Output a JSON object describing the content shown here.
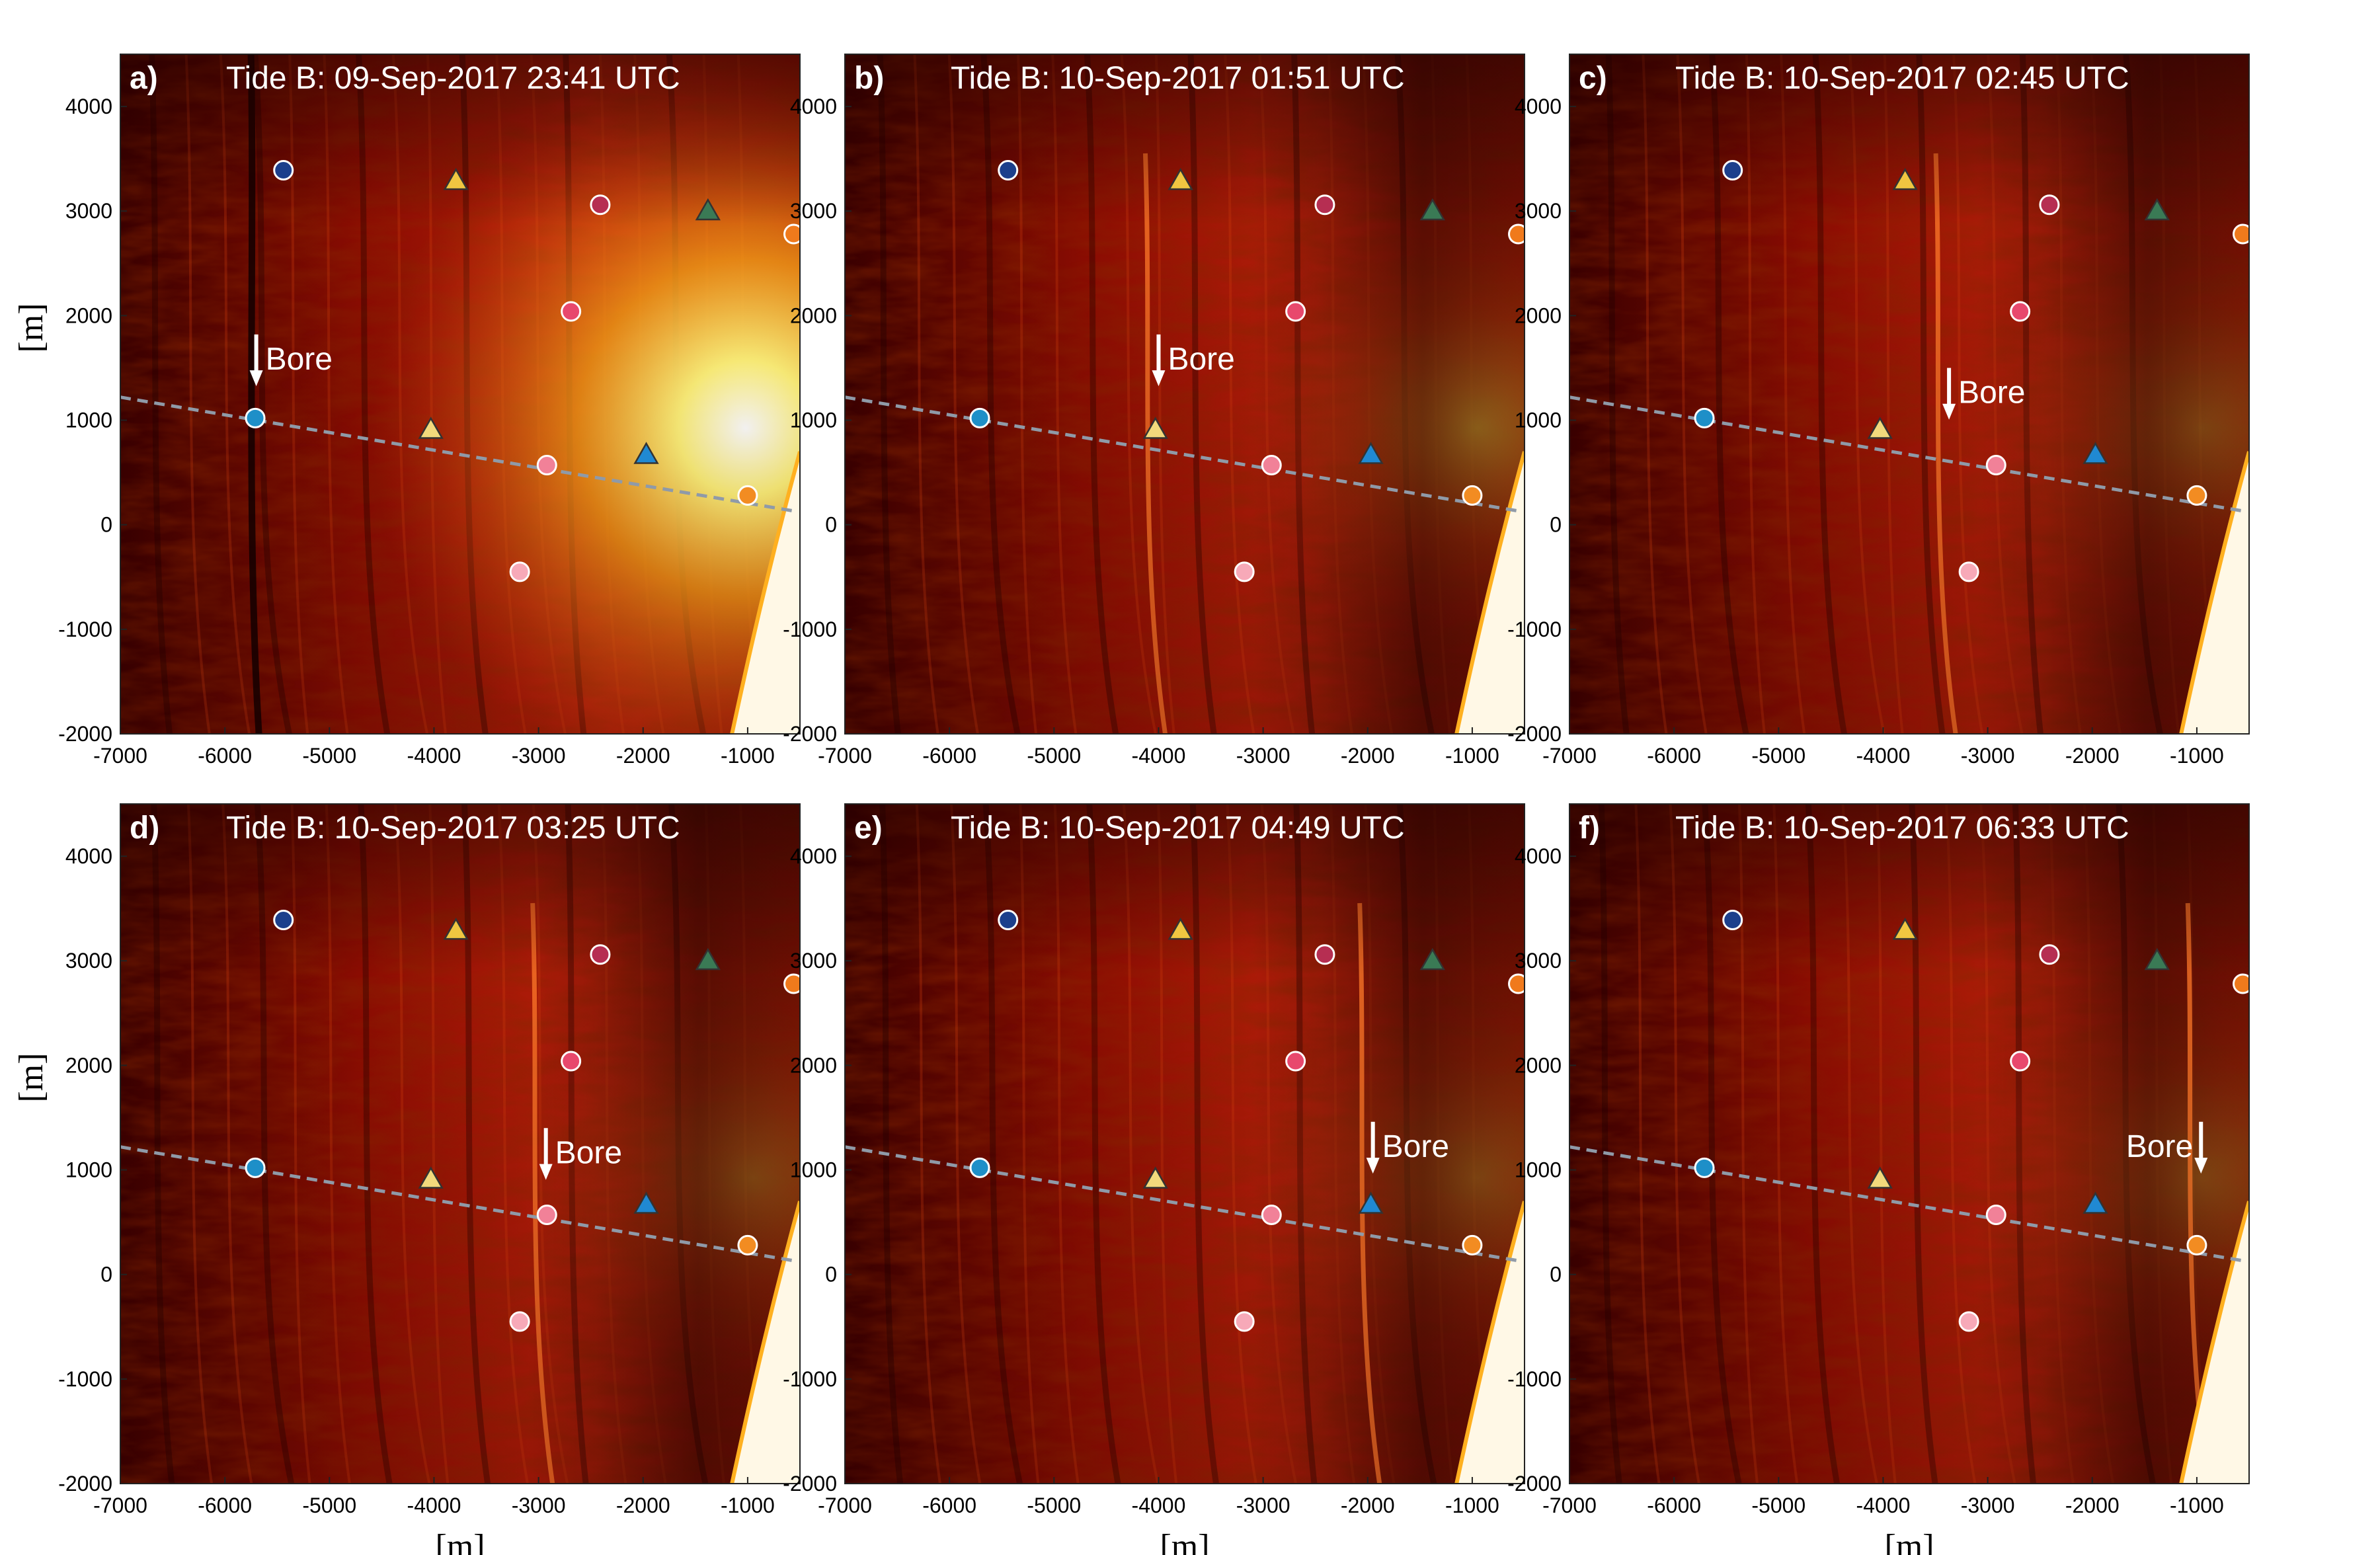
{
  "figure": {
    "axis_label_units": "[m]",
    "x_ticks": [
      -7000,
      -6000,
      -5000,
      -4000,
      -3000,
      -2000,
      -1000
    ],
    "y_ticks": [
      4000,
      3000,
      2000,
      1000,
      0,
      -1000,
      -2000
    ],
    "xlim": [
      -7000,
      -500
    ],
    "ylim": [
      -2000,
      4500
    ],
    "bore_label": "Bore",
    "colors": {
      "image_dark": "#2a0000",
      "image_mid": "#b81d06",
      "image_bright": "#ffe13a",
      "transect_line": "#8f9aa8",
      "marker_edge": "#ffffff"
    }
  },
  "chart_data": [
    {
      "type": "scatter",
      "panel": "a)",
      "title": "Tide B: 09-Sep-2017 23:41 UTC",
      "xlabel": "",
      "ylabel": "[m]",
      "bore": {
        "x": -5700,
        "y_top": 1820,
        "y_bottom": 1350,
        "label_side": "right"
      }
    },
    {
      "type": "scatter",
      "panel": "b)",
      "title": "Tide B: 10-Sep-2017 01:51 UTC",
      "xlabel": "",
      "ylabel": "",
      "bore": {
        "x": -4000,
        "y_top": 1820,
        "y_bottom": 1350,
        "label_side": "right"
      }
    },
    {
      "type": "scatter",
      "panel": "c)",
      "title": "Tide B: 10-Sep-2017 02:45 UTC",
      "xlabel": "",
      "ylabel": "",
      "bore": {
        "x": -3370,
        "y_top": 1500,
        "y_bottom": 1030,
        "label_side": "right"
      }
    },
    {
      "type": "scatter",
      "panel": "d)",
      "title": "Tide B: 10-Sep-2017 03:25 UTC",
      "xlabel": "",
      "ylabel": "[m]",
      "bore": {
        "x": -2930,
        "y_top": 1400,
        "y_bottom": 930,
        "label_side": "right"
      }
    },
    {
      "type": "scatter",
      "panel": "e)",
      "title": "Tide B: 10-Sep-2017 04:49 UTC",
      "xlabel": "[m]",
      "ylabel": "",
      "bore": {
        "x": -1950,
        "y_top": 1460,
        "y_bottom": 990,
        "label_side": "right"
      }
    },
    {
      "type": "scatter",
      "panel": "f)",
      "title": "Tide B: 10-Sep-2017 06:33 UTC",
      "xlabel": "[m]",
      "ylabel": "",
      "bore": {
        "x": -960,
        "y_top": 1460,
        "y_bottom": 990,
        "label_side": "left"
      }
    }
  ],
  "stations": [
    {
      "shape": "circle",
      "x": -5440,
      "y": 3390,
      "color": "#1c3f8c"
    },
    {
      "shape": "triangle",
      "x": -3790,
      "y": 3290,
      "color": "#f0c641"
    },
    {
      "shape": "circle",
      "x": -2410,
      "y": 3060,
      "color": "#b62e52"
    },
    {
      "shape": "triangle",
      "x": -1380,
      "y": 3000,
      "color": "#3a7a55"
    },
    {
      "shape": "circle",
      "x": -560,
      "y": 2780,
      "color": "#f07a1c"
    },
    {
      "shape": "circle",
      "x": -2690,
      "y": 2040,
      "color": "#e8486d"
    },
    {
      "shape": "circle",
      "x": -5710,
      "y": 1020,
      "color": "#1e8fc8"
    },
    {
      "shape": "triangle",
      "x": -4030,
      "y": 910,
      "color": "#f2d97c"
    },
    {
      "shape": "circle",
      "x": -2920,
      "y": 570,
      "color": "#f18198"
    },
    {
      "shape": "triangle",
      "x": -1970,
      "y": 670,
      "color": "#2089d2"
    },
    {
      "shape": "circle",
      "x": -1000,
      "y": 280,
      "color": "#f28c22"
    },
    {
      "shape": "circle",
      "x": -3180,
      "y": -450,
      "color": "#f7a9b8"
    }
  ],
  "transect": {
    "x1": -7000,
    "y1": 1220,
    "x2": -550,
    "y2": 130
  }
}
